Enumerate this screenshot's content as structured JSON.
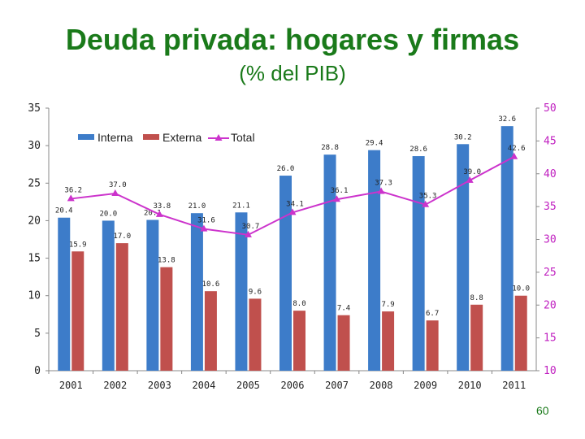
{
  "chart_data": {
    "type": "bar",
    "title": "Deuda privada: hogares y firmas",
    "subtitle": "(% del PIB)",
    "categories": [
      "2001",
      "2002",
      "2003",
      "2004",
      "2005",
      "2006",
      "2007",
      "2008",
      "2009",
      "2010",
      "2011"
    ],
    "series": [
      {
        "name": "Interna",
        "type": "bar",
        "axis": "left",
        "color": "#3d7cc9",
        "values": [
          20.4,
          20.0,
          20.1,
          21.0,
          21.1,
          26.0,
          28.8,
          29.4,
          28.6,
          30.2,
          32.6
        ],
        "labels": [
          "20.4",
          "20.0",
          "20.1",
          "21.0",
          "21.1",
          "26.0",
          "28.8",
          "29.4",
          "28.6",
          "30.2",
          "32.6"
        ]
      },
      {
        "name": "Externa",
        "type": "bar",
        "axis": "left",
        "color": "#c0504d",
        "values": [
          15.9,
          17.0,
          13.8,
          10.6,
          9.6,
          8.0,
          7.4,
          7.9,
          6.7,
          8.8,
          10.0
        ],
        "labels": [
          "15.9",
          "17.0",
          "13.8",
          "10.6",
          "9.6",
          "8.0",
          "7.4",
          "7.9",
          "6.7",
          "8.8",
          "10.0"
        ]
      },
      {
        "name": "Total",
        "type": "line",
        "axis": "right",
        "color": "#cc33cc",
        "values": [
          36.2,
          37.0,
          33.8,
          31.6,
          30.7,
          34.1,
          36.1,
          37.3,
          35.3,
          39.0,
          42.6
        ],
        "labels": [
          "36.2",
          "37.0",
          "33.8",
          "31.6",
          "30.7",
          "34.1",
          "36.1",
          "37.3",
          "35.3",
          "39.0",
          "42.6"
        ]
      }
    ],
    "y_left": {
      "range": [
        0,
        35
      ],
      "ticks": [
        "0",
        "5",
        "10",
        "15",
        "20",
        "25",
        "30",
        "35"
      ]
    },
    "y_right": {
      "range": [
        10,
        50
      ],
      "ticks": [
        "10",
        "15",
        "20",
        "25",
        "30",
        "35",
        "40",
        "45",
        "50"
      ],
      "color": "#c020c0"
    },
    "legend": "top-left",
    "grid": false
  },
  "page_number": "60"
}
